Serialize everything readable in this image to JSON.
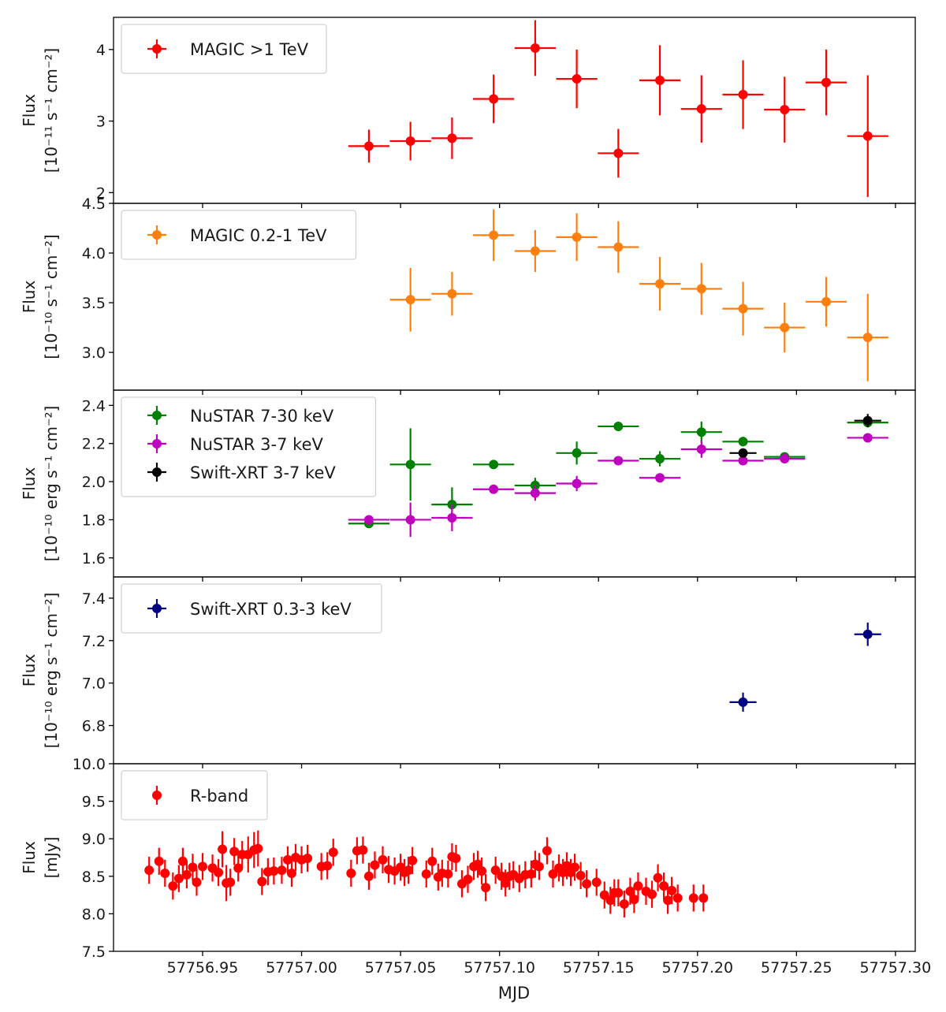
{
  "x_axis": {
    "label": "MJD",
    "range": [
      57756.905,
      57757.31
    ],
    "ticks": [
      "57756.95",
      "57757.00",
      "57757.05",
      "57757.10",
      "57757.15",
      "57757.20",
      "57757.25",
      "57757.30"
    ]
  },
  "chart_data": [
    {
      "type": "scatter",
      "ylabel_line1": "Flux",
      "ylabel_line2": "[10⁻¹¹ s⁻¹ cm⁻²]",
      "ylim": [
        1.85,
        4.45
      ],
      "yticks": [
        "2",
        "3",
        "4"
      ],
      "legend_placement": "top-left",
      "series": [
        {
          "name": "MAGIC >1 TeV",
          "color": "#ff0000",
          "x": [
            57757.034,
            57757.055,
            57757.076,
            57757.097,
            57757.118,
            57757.139,
            57757.16,
            57757.181,
            57757.202,
            57757.223,
            57757.244,
            57757.265,
            57757.286
          ],
          "xerr": [
            0.0104,
            0.0104,
            0.0104,
            0.0104,
            0.0104,
            0.0104,
            0.0104,
            0.0104,
            0.0104,
            0.0104,
            0.0104,
            0.0104,
            0.0104
          ],
          "y": [
            2.65,
            2.72,
            2.76,
            3.31,
            4.02,
            3.59,
            2.55,
            3.57,
            3.17,
            3.37,
            3.16,
            3.54,
            2.79
          ],
          "yerr": [
            0.23,
            0.27,
            0.29,
            0.34,
            0.39,
            0.41,
            0.34,
            0.49,
            0.47,
            0.48,
            0.46,
            0.46,
            0.85
          ]
        }
      ]
    },
    {
      "type": "scatter",
      "ylabel_line1": "Flux",
      "ylabel_line2": "[10⁻¹⁰ s⁻¹ cm⁻²]",
      "ylim": [
        2.62,
        4.5
      ],
      "yticks": [
        "3.0",
        "3.5",
        "4.0",
        "4.5"
      ],
      "legend_placement": "top-left",
      "series": [
        {
          "name": "MAGIC 0.2-1 TeV",
          "color": "#ff7f0e",
          "x": [
            57757.055,
            57757.076,
            57757.097,
            57757.118,
            57757.139,
            57757.16,
            57757.181,
            57757.202,
            57757.223,
            57757.244,
            57757.265,
            57757.286
          ],
          "xerr": [
            0.0104,
            0.0104,
            0.0104,
            0.0104,
            0.0104,
            0.0104,
            0.0104,
            0.0104,
            0.0104,
            0.0104,
            0.0104,
            0.0104
          ],
          "y": [
            3.53,
            3.59,
            4.18,
            4.02,
            4.16,
            4.06,
            3.69,
            3.64,
            3.44,
            3.25,
            3.51,
            3.15
          ],
          "yerr": [
            0.32,
            0.22,
            0.26,
            0.21,
            0.24,
            0.26,
            0.27,
            0.26,
            0.27,
            0.25,
            0.25,
            0.44
          ]
        }
      ]
    },
    {
      "type": "scatter",
      "ylabel_line1": "Flux",
      "ylabel_line2": "[10⁻¹⁰ erg s⁻¹ cm⁻²]",
      "ylim": [
        1.5,
        2.48
      ],
      "yticks": [
        "1.6",
        "1.8",
        "2.0",
        "2.2",
        "2.4"
      ],
      "legend_placement": "top-left",
      "series": [
        {
          "name": "NuSTAR 7-30 keV",
          "color": "#008000",
          "x": [
            57757.034,
            57757.055,
            57757.076,
            57757.097,
            57757.118,
            57757.139,
            57757.16,
            57757.181,
            57757.202,
            57757.223,
            57757.244,
            57757.286
          ],
          "xerr": [
            0.0104,
            0.0104,
            0.0104,
            0.0104,
            0.0104,
            0.0104,
            0.0104,
            0.0104,
            0.0104,
            0.0104,
            0.0104,
            0.0104
          ],
          "y": [
            1.78,
            2.09,
            1.88,
            2.09,
            1.98,
            2.15,
            2.29,
            2.12,
            2.26,
            2.21,
            2.13,
            2.31
          ],
          "yerr": [
            0.015,
            0.19,
            0.09,
            0.02,
            0.04,
            0.06,
            0.025,
            0.04,
            0.055,
            0.025,
            0.02,
            0.025
          ]
        },
        {
          "name": "NuSTAR 3-7 keV",
          "color": "#bf00bf",
          "x": [
            57757.034,
            57757.055,
            57757.076,
            57757.097,
            57757.118,
            57757.139,
            57757.16,
            57757.181,
            57757.202,
            57757.223,
            57757.244,
            57757.286
          ],
          "xerr": [
            0.0104,
            0.0104,
            0.0104,
            0.0104,
            0.0104,
            0.0104,
            0.0104,
            0.0104,
            0.0104,
            0.0104,
            0.0104,
            0.0104
          ],
          "y": [
            1.8,
            1.8,
            1.81,
            1.96,
            1.94,
            1.99,
            2.11,
            2.02,
            2.17,
            2.11,
            2.12,
            2.23
          ],
          "yerr": [
            0.01,
            0.09,
            0.07,
            0.015,
            0.04,
            0.04,
            0.012,
            0.012,
            0.045,
            0.012,
            0.012,
            0.012
          ]
        },
        {
          "name": "Swift-XRT 3-7 keV",
          "color": "#000000",
          "x": [
            57757.223,
            57757.286
          ],
          "xerr": [
            0.0068,
            0.0068
          ],
          "y": [
            2.15,
            2.32
          ],
          "yerr": [
            0.02,
            0.035
          ]
        }
      ]
    },
    {
      "type": "scatter",
      "ylabel_line1": "Flux",
      "ylabel_line2": "[10⁻¹⁰ erg s⁻¹ cm⁻²]",
      "ylim": [
        6.62,
        7.5
      ],
      "yticks": [
        "6.8",
        "7.0",
        "7.2",
        "7.4"
      ],
      "legend_placement": "top-left",
      "series": [
        {
          "name": "Swift-XRT 0.3-3 keV",
          "color": "#000080",
          "x": [
            57757.223,
            57757.286
          ],
          "xerr": [
            0.0068,
            0.0068
          ],
          "y": [
            6.91,
            7.23
          ],
          "yerr": [
            0.045,
            0.055
          ]
        }
      ]
    },
    {
      "type": "scatter",
      "ylabel_line1": "Flux",
      "ylabel_line2": "[mJy]",
      "ylim": [
        7.5,
        10.0
      ],
      "yticks": [
        "7.5",
        "8.0",
        "8.5",
        "9.0",
        "9.5",
        "10.0"
      ],
      "legend_placement": "top-left",
      "series": [
        {
          "name": "R-band",
          "color": "#ff0000",
          "x": [
            57756.923,
            57756.928,
            57756.931,
            57756.935,
            57756.938,
            57756.94,
            57756.942,
            57756.945,
            57756.947,
            57756.95,
            57756.955,
            57756.958,
            57756.96,
            57756.962,
            57756.964,
            57756.966,
            57756.968,
            57756.97,
            57756.973,
            57756.976,
            57756.978,
            57756.98,
            57756.983,
            57756.986,
            57756.99,
            57756.993,
            57756.995,
            57756.997,
            57757.0,
            57757.003,
            57757.01,
            57757.013,
            57757.016,
            57757.025,
            57757.028,
            57757.031,
            57757.034,
            57757.037,
            57757.041,
            57757.044,
            57757.047,
            57757.05,
            57757.052,
            57757.054,
            57757.056,
            57757.063,
            57757.066,
            57757.069,
            57757.071,
            57757.074,
            57757.076,
            57757.078,
            57757.081,
            57757.084,
            57757.087,
            57757.089,
            57757.091,
            57757.093,
            57757.098,
            57757.101,
            57757.103,
            57757.105,
            57757.107,
            57757.11,
            57757.113,
            57757.116,
            57757.118,
            57757.12,
            57757.124,
            57757.127,
            57757.13,
            57757.132,
            57757.134,
            57757.136,
            57757.138,
            57757.141,
            57757.144,
            57757.149,
            57757.153,
            57757.156,
            57757.158,
            57757.16,
            57757.163,
            57757.166,
            57757.168,
            57757.17,
            57757.174,
            57757.177,
            57757.18,
            57757.183,
            57757.185,
            57757.187,
            57757.19,
            57757.198,
            57757.203
          ],
          "y": [
            8.58,
            8.7,
            8.54,
            8.37,
            8.47,
            8.7,
            8.52,
            8.62,
            8.42,
            8.63,
            8.61,
            8.55,
            8.86,
            8.41,
            8.42,
            8.83,
            8.61,
            8.79,
            8.79,
            8.85,
            8.87,
            8.43,
            8.56,
            8.57,
            8.58,
            8.72,
            8.54,
            8.75,
            8.72,
            8.74,
            8.63,
            8.64,
            8.82,
            8.54,
            8.84,
            8.85,
            8.5,
            8.65,
            8.72,
            8.59,
            8.57,
            8.62,
            8.55,
            8.58,
            8.71,
            8.53,
            8.7,
            8.49,
            8.54,
            8.53,
            8.76,
            8.74,
            8.4,
            8.46,
            8.63,
            8.66,
            8.57,
            8.35,
            8.58,
            8.5,
            8.41,
            8.5,
            8.52,
            8.47,
            8.52,
            8.53,
            8.66,
            8.63,
            8.84,
            8.53,
            8.61,
            8.55,
            8.64,
            8.55,
            8.62,
            8.51,
            8.4,
            8.42,
            8.25,
            8.18,
            8.28,
            8.28,
            8.13,
            8.3,
            8.19,
            8.37,
            8.3,
            8.26,
            8.48,
            8.37,
            8.18,
            8.31,
            8.21,
            8.21,
            8.21
          ],
          "yerr": [
            0.18,
            0.18,
            0.18,
            0.18,
            0.18,
            0.18,
            0.18,
            0.18,
            0.18,
            0.18,
            0.18,
            0.18,
            0.24,
            0.24,
            0.18,
            0.18,
            0.18,
            0.18,
            0.24,
            0.24,
            0.24,
            0.18,
            0.18,
            0.18,
            0.18,
            0.18,
            0.18,
            0.18,
            0.18,
            0.18,
            0.18,
            0.18,
            0.18,
            0.18,
            0.18,
            0.18,
            0.18,
            0.18,
            0.18,
            0.18,
            0.18,
            0.18,
            0.18,
            0.18,
            0.18,
            0.18,
            0.18,
            0.18,
            0.18,
            0.18,
            0.18,
            0.18,
            0.18,
            0.18,
            0.18,
            0.18,
            0.18,
            0.18,
            0.18,
            0.18,
            0.18,
            0.18,
            0.18,
            0.18,
            0.18,
            0.18,
            0.18,
            0.18,
            0.18,
            0.18,
            0.18,
            0.18,
            0.18,
            0.18,
            0.18,
            0.18,
            0.18,
            0.18,
            0.18,
            0.18,
            0.18,
            0.18,
            0.18,
            0.18,
            0.18,
            0.18,
            0.18,
            0.18,
            0.18,
            0.18,
            0.18,
            0.18,
            0.18,
            0.18,
            0.18
          ]
        }
      ]
    }
  ]
}
